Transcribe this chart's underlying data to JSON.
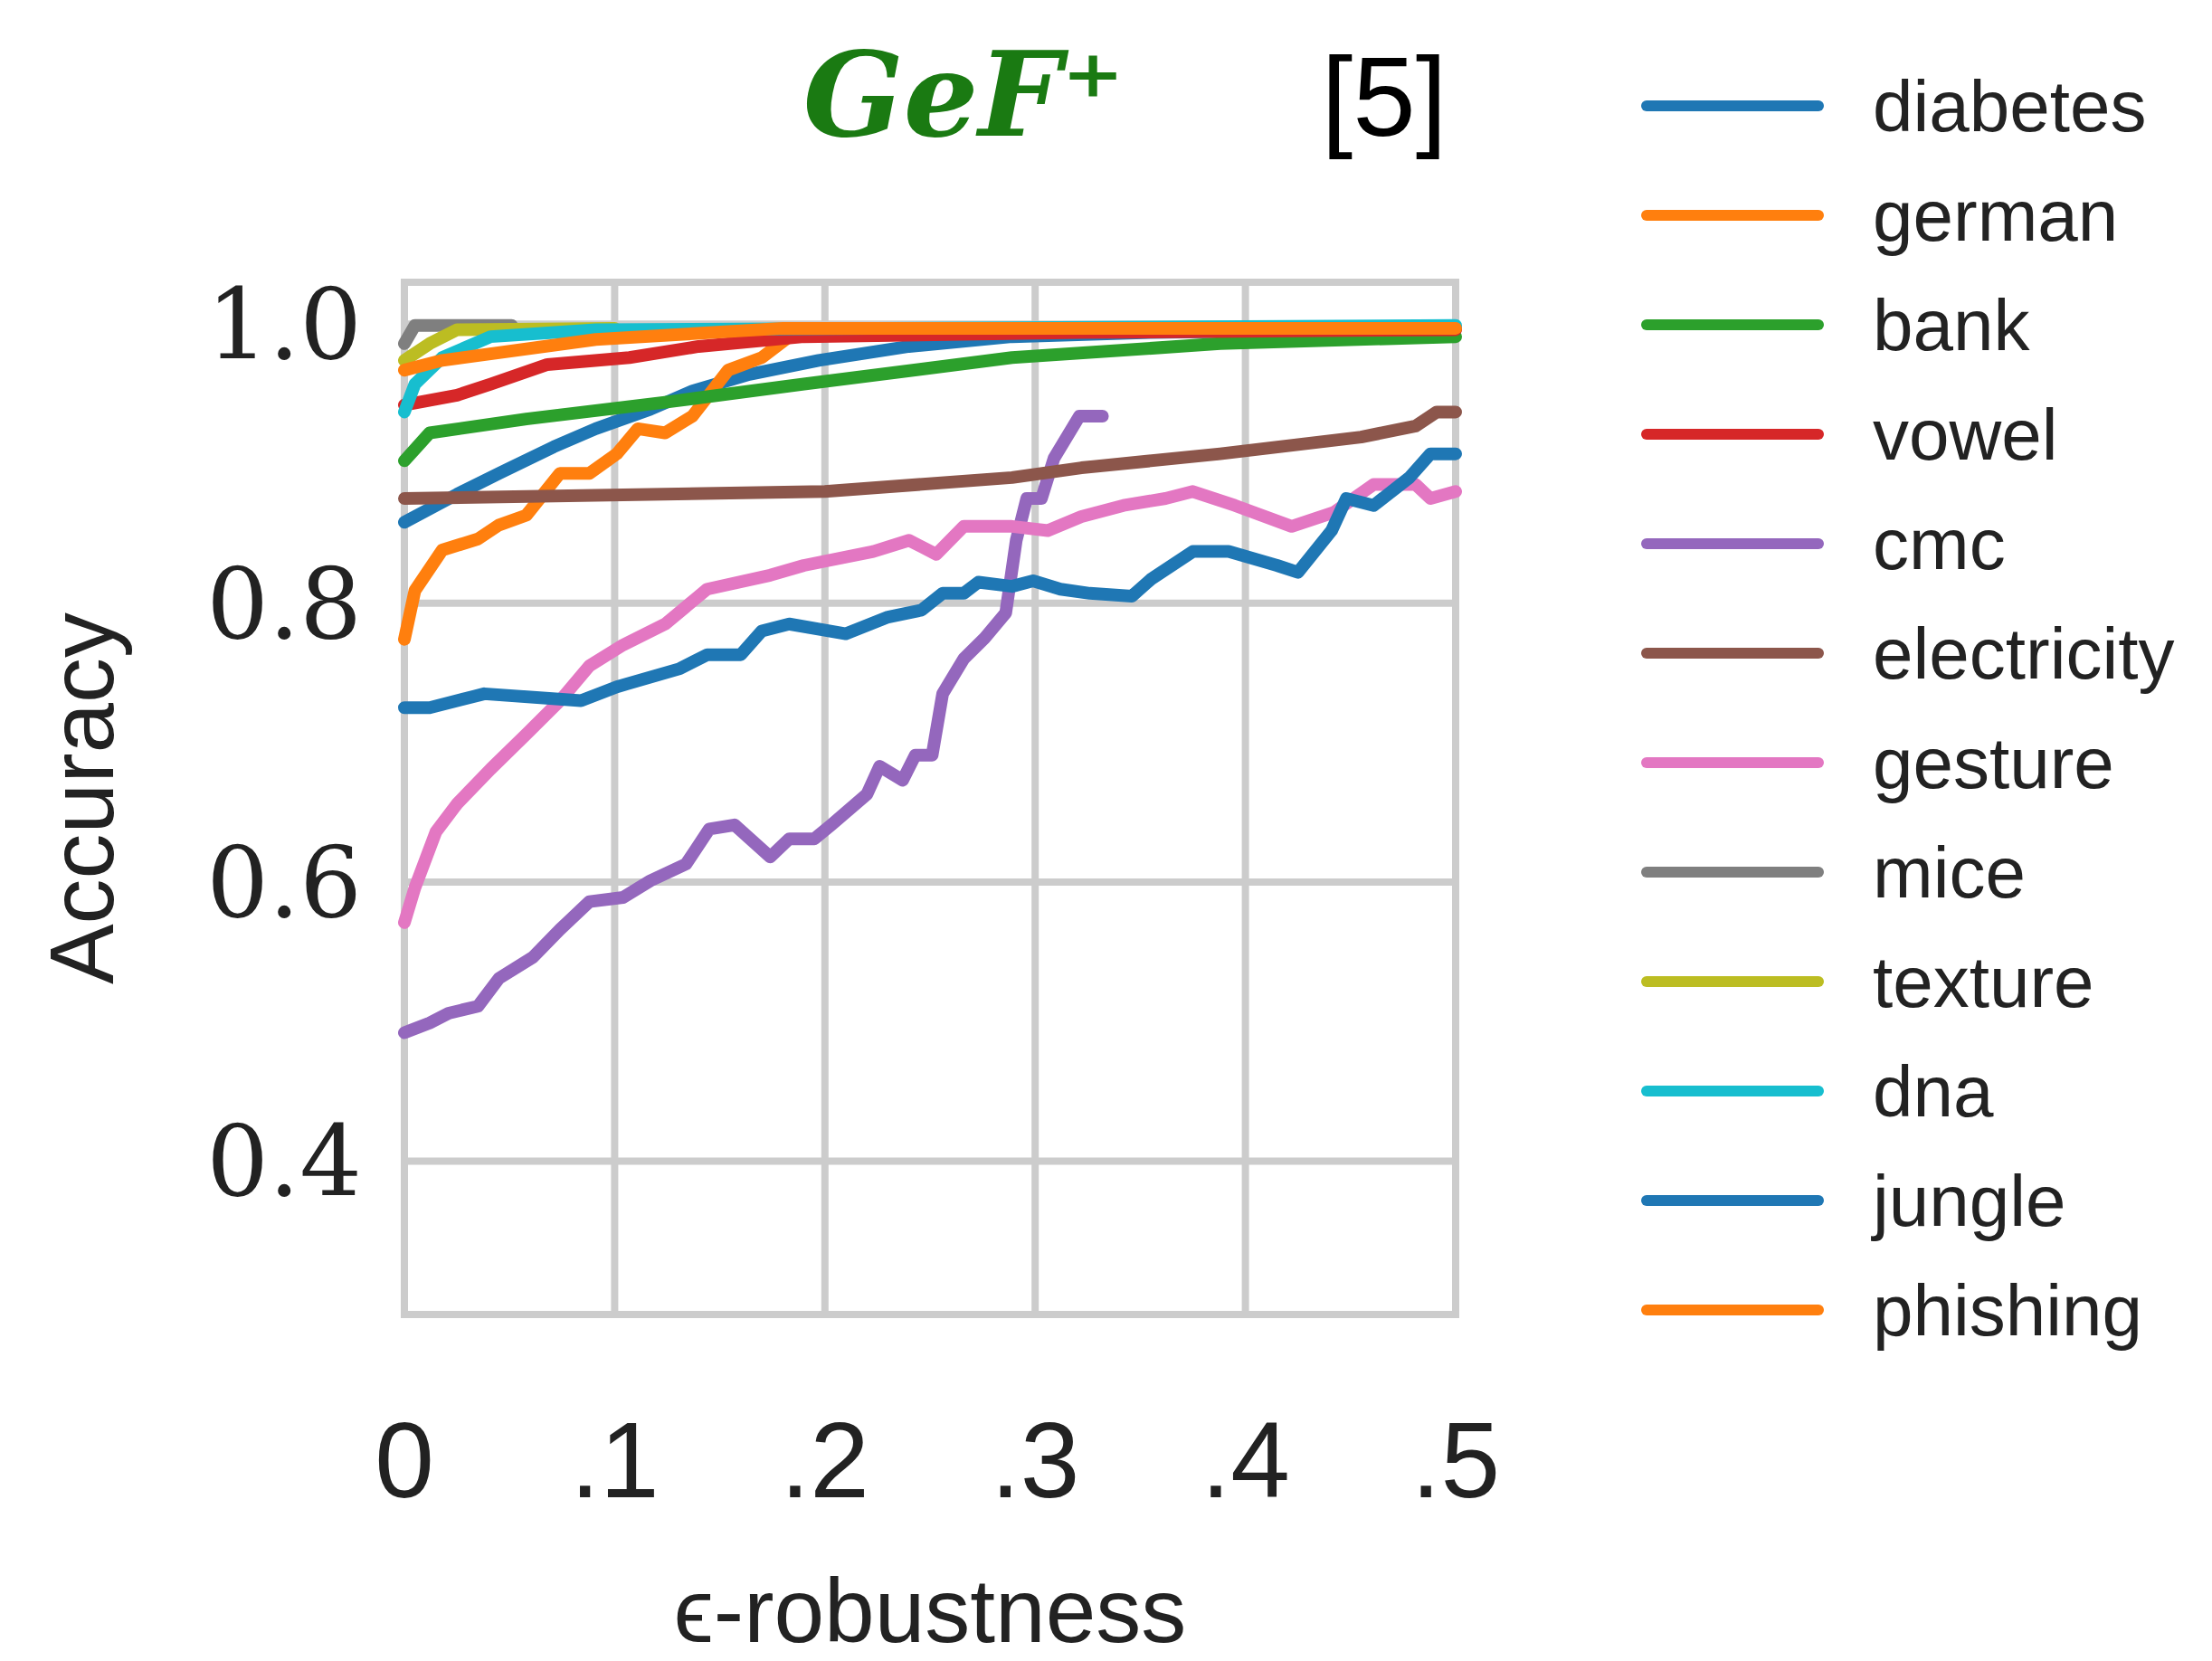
{
  "chart_data": {
    "type": "line",
    "title": "GeF⁺",
    "subtitle": "[5]",
    "xlabel": "ϵ-robustness",
    "ylabel": "Accuracy",
    "xlim": [
      0,
      0.5
    ],
    "ylim": [
      0.29,
      1.03
    ],
    "xticks": [
      {
        "value": 0,
        "label": "0"
      },
      {
        "value": 0.1,
        "label": ".1"
      },
      {
        "value": 0.2,
        "label": ".2"
      },
      {
        "value": 0.3,
        "label": ".3"
      },
      {
        "value": 0.4,
        "label": ".4"
      },
      {
        "value": 0.5,
        "label": ".5"
      }
    ],
    "yticks": [
      {
        "value": 0.4,
        "label": "0.4"
      },
      {
        "value": 0.6,
        "label": "0.6"
      },
      {
        "value": 0.8,
        "label": "0.8"
      },
      {
        "value": 1.0,
        "label": "1.0"
      }
    ],
    "grid": true,
    "legend": "right",
    "marker": "none",
    "line_style": "solid",
    "series": [
      {
        "name": "diabetes",
        "color": "#1f77b4",
        "x": [
          0,
          0.025,
          0.045,
          0.071,
          0.091,
          0.117,
          0.137,
          0.164,
          0.197,
          0.24,
          0.289,
          0.355,
          0.5
        ],
        "values": [
          0.858,
          0.878,
          0.893,
          0.912,
          0.925,
          0.939,
          0.952,
          0.964,
          0.974,
          0.984,
          0.991,
          0.994,
          0.997
        ]
      },
      {
        "name": "german",
        "color": "#ff7f0e",
        "x": [
          0,
          0.005,
          0.018,
          0.035,
          0.045,
          0.058,
          0.074,
          0.088,
          0.101,
          0.111,
          0.124,
          0.137,
          0.154,
          0.17,
          0.183,
          0.197
        ],
        "values": [
          0.774,
          0.809,
          0.838,
          0.846,
          0.856,
          0.863,
          0.893,
          0.893,
          0.907,
          0.925,
          0.922,
          0.934,
          0.967,
          0.976,
          0.991,
          0.996
        ]
      },
      {
        "name": "bank",
        "color": "#2ca02c",
        "x": [
          0,
          0.012,
          0.058,
          0.124,
          0.19,
          0.289,
          0.388,
          0.5
        ],
        "values": [
          0.902,
          0.922,
          0.932,
          0.944,
          0.957,
          0.976,
          0.986,
          0.991
        ]
      },
      {
        "name": "vowel",
        "color": "#d62728",
        "x": [
          0,
          0.025,
          0.041,
          0.068,
          0.107,
          0.14,
          0.19,
          0.322,
          0.5
        ],
        "values": [
          0.942,
          0.949,
          0.957,
          0.971,
          0.976,
          0.984,
          0.991,
          0.994,
          0.996
        ]
      },
      {
        "name": "cmc",
        "color": "#9467bd",
        "x": [
          0,
          0.012,
          0.021,
          0.035,
          0.045,
          0.061,
          0.074,
          0.088,
          0.104,
          0.117,
          0.134,
          0.145,
          0.157,
          0.174,
          0.183,
          0.195,
          0.203,
          0.22,
          0.226,
          0.237,
          0.243,
          0.251,
          0.256,
          0.266,
          0.276,
          0.286,
          0.291,
          0.296,
          0.303,
          0.309,
          0.321,
          0.332
        ],
        "values": [
          0.492,
          0.499,
          0.506,
          0.511,
          0.531,
          0.546,
          0.566,
          0.586,
          0.589,
          0.601,
          0.613,
          0.638,
          0.641,
          0.618,
          0.631,
          0.631,
          0.641,
          0.663,
          0.683,
          0.673,
          0.691,
          0.691,
          0.735,
          0.76,
          0.775,
          0.793,
          0.845,
          0.875,
          0.875,
          0.904,
          0.934,
          0.934
        ]
      },
      {
        "name": "electricity",
        "color": "#8c564b",
        "x": [
          0,
          0.2,
          0.289,
          0.322,
          0.388,
          0.455,
          0.481,
          0.491,
          0.5
        ],
        "values": [
          0.875,
          0.88,
          0.89,
          0.897,
          0.907,
          0.919,
          0.927,
          0.937,
          0.937
        ]
      },
      {
        "name": "gesture",
        "color": "#e377c2",
        "x": [
          0,
          0.005,
          0.015,
          0.025,
          0.041,
          0.058,
          0.074,
          0.088,
          0.104,
          0.124,
          0.144,
          0.174,
          0.19,
          0.223,
          0.24,
          0.253,
          0.266,
          0.289,
          0.306,
          0.322,
          0.342,
          0.362,
          0.375,
          0.395,
          0.422,
          0.442,
          0.461,
          0.481,
          0.488,
          0.5
        ],
        "values": [
          0.571,
          0.596,
          0.636,
          0.656,
          0.681,
          0.706,
          0.73,
          0.755,
          0.77,
          0.785,
          0.81,
          0.82,
          0.827,
          0.837,
          0.845,
          0.835,
          0.855,
          0.855,
          0.852,
          0.862,
          0.87,
          0.875,
          0.88,
          0.87,
          0.855,
          0.865,
          0.885,
          0.885,
          0.875,
          0.88
        ]
      },
      {
        "name": "mice",
        "color": "#7f7f7f",
        "x": [
          0,
          0.005,
          0.051
        ],
        "values": [
          0.986,
          0.999,
          0.999
        ]
      },
      {
        "name": "texture",
        "color": "#bcbd22",
        "x": [
          0,
          0.012,
          0.025,
          0.1
        ],
        "values": [
          0.974,
          0.986,
          0.996,
          0.997
        ]
      },
      {
        "name": "dna",
        "color": "#17becf",
        "x": [
          0,
          0.005,
          0.018,
          0.041,
          0.091,
          0.5
        ],
        "values": [
          0.937,
          0.957,
          0.976,
          0.991,
          0.996,
          0.999
        ]
      },
      {
        "name": "jungle",
        "color": "#1f77b4",
        "x": [
          0,
          0.012,
          0.038,
          0.084,
          0.101,
          0.131,
          0.144,
          0.16,
          0.17,
          0.183,
          0.21,
          0.23,
          0.246,
          0.256,
          0.266,
          0.273,
          0.289,
          0.299,
          0.312,
          0.326,
          0.346,
          0.355,
          0.375,
          0.392,
          0.415,
          0.425,
          0.441,
          0.448,
          0.461,
          0.478,
          0.488,
          0.5
        ],
        "values": [
          0.725,
          0.725,
          0.735,
          0.73,
          0.74,
          0.753,
          0.763,
          0.763,
          0.78,
          0.785,
          0.778,
          0.79,
          0.795,
          0.807,
          0.807,
          0.815,
          0.812,
          0.816,
          0.81,
          0.807,
          0.805,
          0.817,
          0.837,
          0.837,
          0.827,
          0.822,
          0.852,
          0.875,
          0.87,
          0.89,
          0.907,
          0.907
        ]
      },
      {
        "name": "phishing",
        "color": "#ff7f0e",
        "x": [
          0,
          0.018,
          0.091,
          0.18,
          0.5
        ],
        "values": [
          0.967,
          0.974,
          0.989,
          0.997,
          0.997
        ]
      }
    ]
  }
}
